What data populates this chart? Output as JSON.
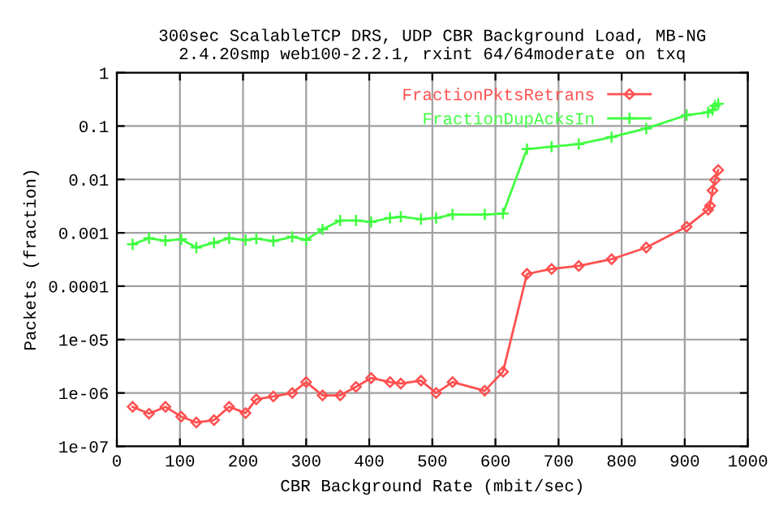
{
  "chart_data": {
    "type": "line",
    "title": "300sec ScalableTCP DRS, UDP CBR Background Load, MB-NG\n2.4.20smp web100-2.2.1, rxint 64/64moderate on txq",
    "xlabel": "CBR Background Rate (mbit/sec)",
    "ylabel": "Packets (fraction)",
    "series": [
      {
        "name": "FractionPktsRetrans",
        "color": "#ff5050",
        "marker": "diamond",
        "x": [
          25,
          51,
          77,
          102,
          126,
          154,
          178,
          204,
          221,
          248,
          278,
          300,
          326,
          354,
          379,
          403,
          433,
          450,
          482,
          506,
          532,
          583,
          612,
          650,
          689,
          732,
          784,
          839,
          903,
          937,
          940,
          944,
          948,
          953
        ],
        "values": [
          5.5e-07,
          4.1e-07,
          5.5e-07,
          3.6e-07,
          2.8e-07,
          3.1e-07,
          5.5e-07,
          4.2e-07,
          7.6e-07,
          8.6e-07,
          1e-06,
          1.6e-06,
          9e-07,
          9e-07,
          1.3e-06,
          1.9e-06,
          1.6e-06,
          1.5e-06,
          1.7e-06,
          1e-06,
          1.6e-06,
          1.1e-06,
          2.5e-06,
          0.00017,
          0.00021,
          0.00024,
          0.00032,
          0.00053,
          0.0013,
          0.0027,
          0.0032,
          0.0062,
          0.0098,
          0.015
        ]
      },
      {
        "name": "FractionDupAcksIn",
        "color": "#40ff40",
        "marker": "cross",
        "x": [
          25,
          51,
          77,
          102,
          126,
          154,
          178,
          204,
          221,
          248,
          278,
          300,
          326,
          354,
          379,
          403,
          433,
          450,
          482,
          506,
          532,
          583,
          612,
          650,
          689,
          732,
          784,
          839,
          903,
          937,
          944,
          948,
          953
        ],
        "values": [
          0.00061,
          0.00079,
          0.00071,
          0.00076,
          0.00053,
          0.00065,
          0.00079,
          0.00073,
          0.00078,
          0.0007,
          0.00084,
          0.00074,
          0.00116,
          0.0017,
          0.0017,
          0.0016,
          0.0019,
          0.002,
          0.0018,
          0.0019,
          0.0022,
          0.0022,
          0.0023,
          0.037,
          0.041,
          0.046,
          0.062,
          0.09,
          0.16,
          0.18,
          0.2,
          0.24,
          0.26
        ]
      }
    ],
    "log": "y",
    "xlim": [
      0,
      1000
    ],
    "xticks": [
      0,
      100,
      200,
      300,
      400,
      500,
      600,
      700,
      800,
      900,
      1000
    ],
    "ylim": [
      1e-07,
      1
    ],
    "yticks": [
      {
        "value": 1e-07,
        "label": "1e-07"
      },
      {
        "value": 1e-06,
        "label": "1e-06"
      },
      {
        "value": 1e-05,
        "label": "1e-05"
      },
      {
        "value": 0.0001,
        "label": "0.0001"
      },
      {
        "value": 0.001,
        "label": "0.001"
      },
      {
        "value": 0.01,
        "label": "0.01"
      },
      {
        "value": 0.1,
        "label": "0.1"
      },
      {
        "value": 1,
        "label": "1"
      }
    ],
    "grid": true,
    "legend": "top right"
  }
}
